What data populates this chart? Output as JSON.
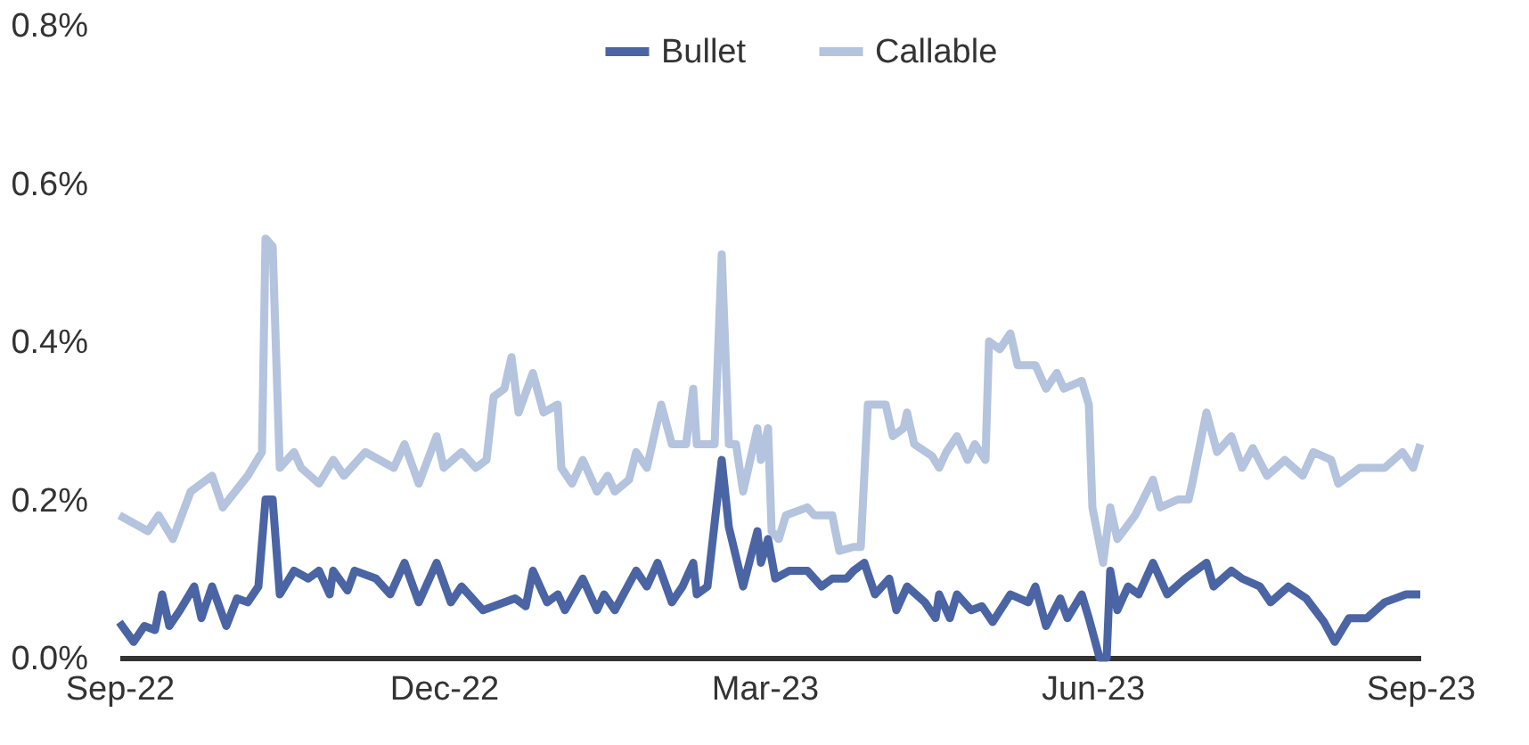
{
  "chart_data": {
    "type": "line",
    "legend": "top",
    "grid": false,
    "marker": "none",
    "line_style": "solid",
    "xlim": [
      "2022-09-01",
      "2023-09-01"
    ],
    "xticks": [
      {
        "value": "2022-09-01",
        "label": "Sep-22"
      },
      {
        "value": "2022-12-01",
        "label": "Dec-22"
      },
      {
        "value": "2023-03-01",
        "label": "Mar-23"
      },
      {
        "value": "2023-06-01",
        "label": "Jun-23"
      },
      {
        "value": "2023-09-01",
        "label": "Sep-23"
      }
    ],
    "ylim": [
      0,
      0.8
    ],
    "yticks": [
      {
        "value": 0,
        "label": "0.0%"
      },
      {
        "value": 0.2,
        "label": "0.2%"
      },
      {
        "value": 0.4,
        "label": "0.4%"
      },
      {
        "value": 0.6,
        "label": "0.6%"
      },
      {
        "value": 0.8,
        "label": "0.8%"
      }
    ],
    "series": [
      {
        "name": "Bullet",
        "color": "#4a64a4",
        "x": [
          "2022-09-01",
          "2022-09-05",
          "2022-09-08",
          "2022-09-11",
          "2022-09-13",
          "2022-09-15",
          "2022-09-18",
          "2022-09-22",
          "2022-09-24",
          "2022-09-27",
          "2022-10-01",
          "2022-10-04",
          "2022-10-07",
          "2022-10-10",
          "2022-10-12",
          "2022-10-14",
          "2022-10-16",
          "2022-10-20",
          "2022-10-24",
          "2022-10-27",
          "2022-10-30",
          "2022-10-31",
          "2022-11-04",
          "2022-11-06",
          "2022-11-12",
          "2022-11-16",
          "2022-11-20",
          "2022-11-24",
          "2022-11-29",
          "2022-12-03",
          "2022-12-06",
          "2022-12-12",
          "2022-12-21",
          "2022-12-24",
          "2022-12-26",
          "2022-12-30",
          "2023-01-02",
          "2023-01-04",
          "2023-01-09",
          "2023-01-13",
          "2023-01-15",
          "2023-01-18",
          "2023-01-24",
          "2023-01-27",
          "2023-01-30",
          "2023-02-03",
          "2023-02-06",
          "2023-02-09",
          "2023-02-10",
          "2023-02-13",
          "2023-02-17",
          "2023-02-19",
          "2023-02-23",
          "2023-02-27",
          "2023-02-28",
          "2023-03-02",
          "2023-03-04",
          "2023-03-08",
          "2023-03-13",
          "2023-03-17",
          "2023-03-20",
          "2023-03-24",
          "2023-03-26",
          "2023-03-29",
          "2023-04-01",
          "2023-04-05",
          "2023-04-07",
          "2023-04-10",
          "2023-04-15",
          "2023-04-18",
          "2023-04-19",
          "2023-04-22",
          "2023-04-24",
          "2023-04-28",
          "2023-05-01",
          "2023-05-04",
          "2023-05-09",
          "2023-05-14",
          "2023-05-16",
          "2023-05-19",
          "2023-05-23",
          "2023-05-25",
          "2023-05-29",
          "2023-05-31",
          "2023-06-03",
          "2023-06-05",
          "2023-06-06",
          "2023-06-08",
          "2023-06-11",
          "2023-06-14",
          "2023-06-18",
          "2023-06-22",
          "2023-06-27",
          "2023-07-03",
          "2023-07-05",
          "2023-07-10",
          "2023-07-13",
          "2023-07-18",
          "2023-07-21",
          "2023-07-26",
          "2023-07-31",
          "2023-08-05",
          "2023-08-08",
          "2023-08-12",
          "2023-08-17",
          "2023-08-22",
          "2023-08-28",
          "2023-09-01"
        ],
        "values": [
          0.045,
          0.02,
          0.04,
          0.035,
          0.08,
          0.04,
          0.06,
          0.09,
          0.05,
          0.09,
          0.04,
          0.075,
          0.07,
          0.09,
          0.2,
          0.2,
          0.08,
          0.11,
          0.1,
          0.11,
          0.08,
          0.11,
          0.085,
          0.11,
          0.1,
          0.08,
          0.12,
          0.07,
          0.12,
          0.07,
          0.09,
          0.06,
          0.075,
          0.065,
          0.11,
          0.07,
          0.08,
          0.06,
          0.1,
          0.06,
          0.08,
          0.06,
          0.11,
          0.09,
          0.12,
          0.07,
          0.09,
          0.12,
          0.08,
          0.09,
          0.25,
          0.165,
          0.09,
          0.16,
          0.12,
          0.15,
          0.1,
          0.11,
          0.11,
          0.09,
          0.1,
          0.1,
          0.11,
          0.12,
          0.08,
          0.1,
          0.06,
          0.09,
          0.07,
          0.05,
          0.08,
          0.05,
          0.08,
          0.06,
          0.065,
          0.045,
          0.08,
          0.07,
          0.09,
          0.04,
          0.075,
          0.05,
          0.08,
          0.05,
          0.0,
          0.0,
          0.11,
          0.06,
          0.09,
          0.08,
          0.12,
          0.08,
          0.1,
          0.12,
          0.09,
          0.11,
          0.1,
          0.09,
          0.07,
          0.09,
          0.075,
          0.045,
          0.02,
          0.05,
          0.05,
          0.07,
          0.08,
          0.08
        ]
      },
      {
        "name": "Callable",
        "color": "#b4c3de",
        "x": [
          "2022-09-01",
          "2022-09-09",
          "2022-09-12",
          "2022-09-16",
          "2022-09-21",
          "2022-09-27",
          "2022-09-30",
          "2022-10-07",
          "2022-10-11",
          "2022-10-12",
          "2022-10-14",
          "2022-10-16",
          "2022-10-20",
          "2022-10-22",
          "2022-10-27",
          "2022-10-31",
          "2022-11-03",
          "2022-11-09",
          "2022-11-17",
          "2022-11-20",
          "2022-11-24",
          "2022-11-29",
          "2022-12-01",
          "2022-12-06",
          "2022-12-10",
          "2022-12-13",
          "2022-12-15",
          "2022-12-18",
          "2022-12-20",
          "2022-12-22",
          "2022-12-26",
          "2022-12-29",
          "2023-01-02",
          "2023-01-03",
          "2023-01-06",
          "2023-01-09",
          "2023-01-13",
          "2023-01-16",
          "2023-01-18",
          "2023-01-22",
          "2023-01-24",
          "2023-01-27",
          "2023-01-31",
          "2023-02-03",
          "2023-02-07",
          "2023-02-09",
          "2023-02-10",
          "2023-02-15",
          "2023-02-17",
          "2023-02-19",
          "2023-02-21",
          "2023-02-23",
          "2023-02-27",
          "2023-02-28",
          "2023-03-02",
          "2023-03-03",
          "2023-03-05",
          "2023-03-07",
          "2023-03-13",
          "2023-03-15",
          "2023-03-20",
          "2023-03-22",
          "2023-03-26",
          "2023-03-28",
          "2023-03-30",
          "2023-04-04",
          "2023-04-06",
          "2023-04-09",
          "2023-04-10",
          "2023-04-12",
          "2023-04-17",
          "2023-04-19",
          "2023-04-21",
          "2023-04-24",
          "2023-04-27",
          "2023-04-29",
          "2023-05-02",
          "2023-05-03",
          "2023-05-06",
          "2023-05-09",
          "2023-05-11",
          "2023-05-14",
          "2023-05-16",
          "2023-05-19",
          "2023-05-22",
          "2023-05-24",
          "2023-05-29",
          "2023-05-31",
          "2023-06-01",
          "2023-06-04",
          "2023-06-06",
          "2023-06-08",
          "2023-06-13",
          "2023-06-18",
          "2023-06-20",
          "2023-06-25",
          "2023-06-28",
          "2023-06-29",
          "2023-07-03",
          "2023-07-06",
          "2023-07-10",
          "2023-07-13",
          "2023-07-16",
          "2023-07-20",
          "2023-07-25",
          "2023-07-30",
          "2023-08-02",
          "2023-08-07",
          "2023-08-09",
          "2023-08-15",
          "2023-08-22",
          "2023-08-27",
          "2023-08-30",
          "2023-09-01"
        ],
        "values": [
          0.18,
          0.16,
          0.18,
          0.15,
          0.21,
          0.23,
          0.19,
          0.23,
          0.26,
          0.53,
          0.52,
          0.24,
          0.26,
          0.24,
          0.22,
          0.25,
          0.23,
          0.26,
          0.24,
          0.27,
          0.22,
          0.28,
          0.24,
          0.26,
          0.24,
          0.25,
          0.33,
          0.34,
          0.38,
          0.31,
          0.36,
          0.31,
          0.32,
          0.24,
          0.22,
          0.25,
          0.21,
          0.23,
          0.21,
          0.225,
          0.26,
          0.24,
          0.32,
          0.27,
          0.27,
          0.34,
          0.27,
          0.27,
          0.51,
          0.27,
          0.27,
          0.21,
          0.29,
          0.25,
          0.29,
          0.16,
          0.15,
          0.18,
          0.19,
          0.18,
          0.18,
          0.135,
          0.14,
          0.14,
          0.32,
          0.32,
          0.28,
          0.29,
          0.31,
          0.27,
          0.255,
          0.24,
          0.26,
          0.28,
          0.25,
          0.27,
          0.25,
          0.4,
          0.39,
          0.41,
          0.37,
          0.37,
          0.37,
          0.34,
          0.36,
          0.34,
          0.35,
          0.32,
          0.19,
          0.12,
          0.19,
          0.15,
          0.18,
          0.225,
          0.19,
          0.2,
          0.2,
          0.22,
          0.31,
          0.26,
          0.28,
          0.24,
          0.265,
          0.23,
          0.25,
          0.23,
          0.26,
          0.25,
          0.22,
          0.24,
          0.24,
          0.26,
          0.24,
          0.27
        ]
      }
    ]
  }
}
